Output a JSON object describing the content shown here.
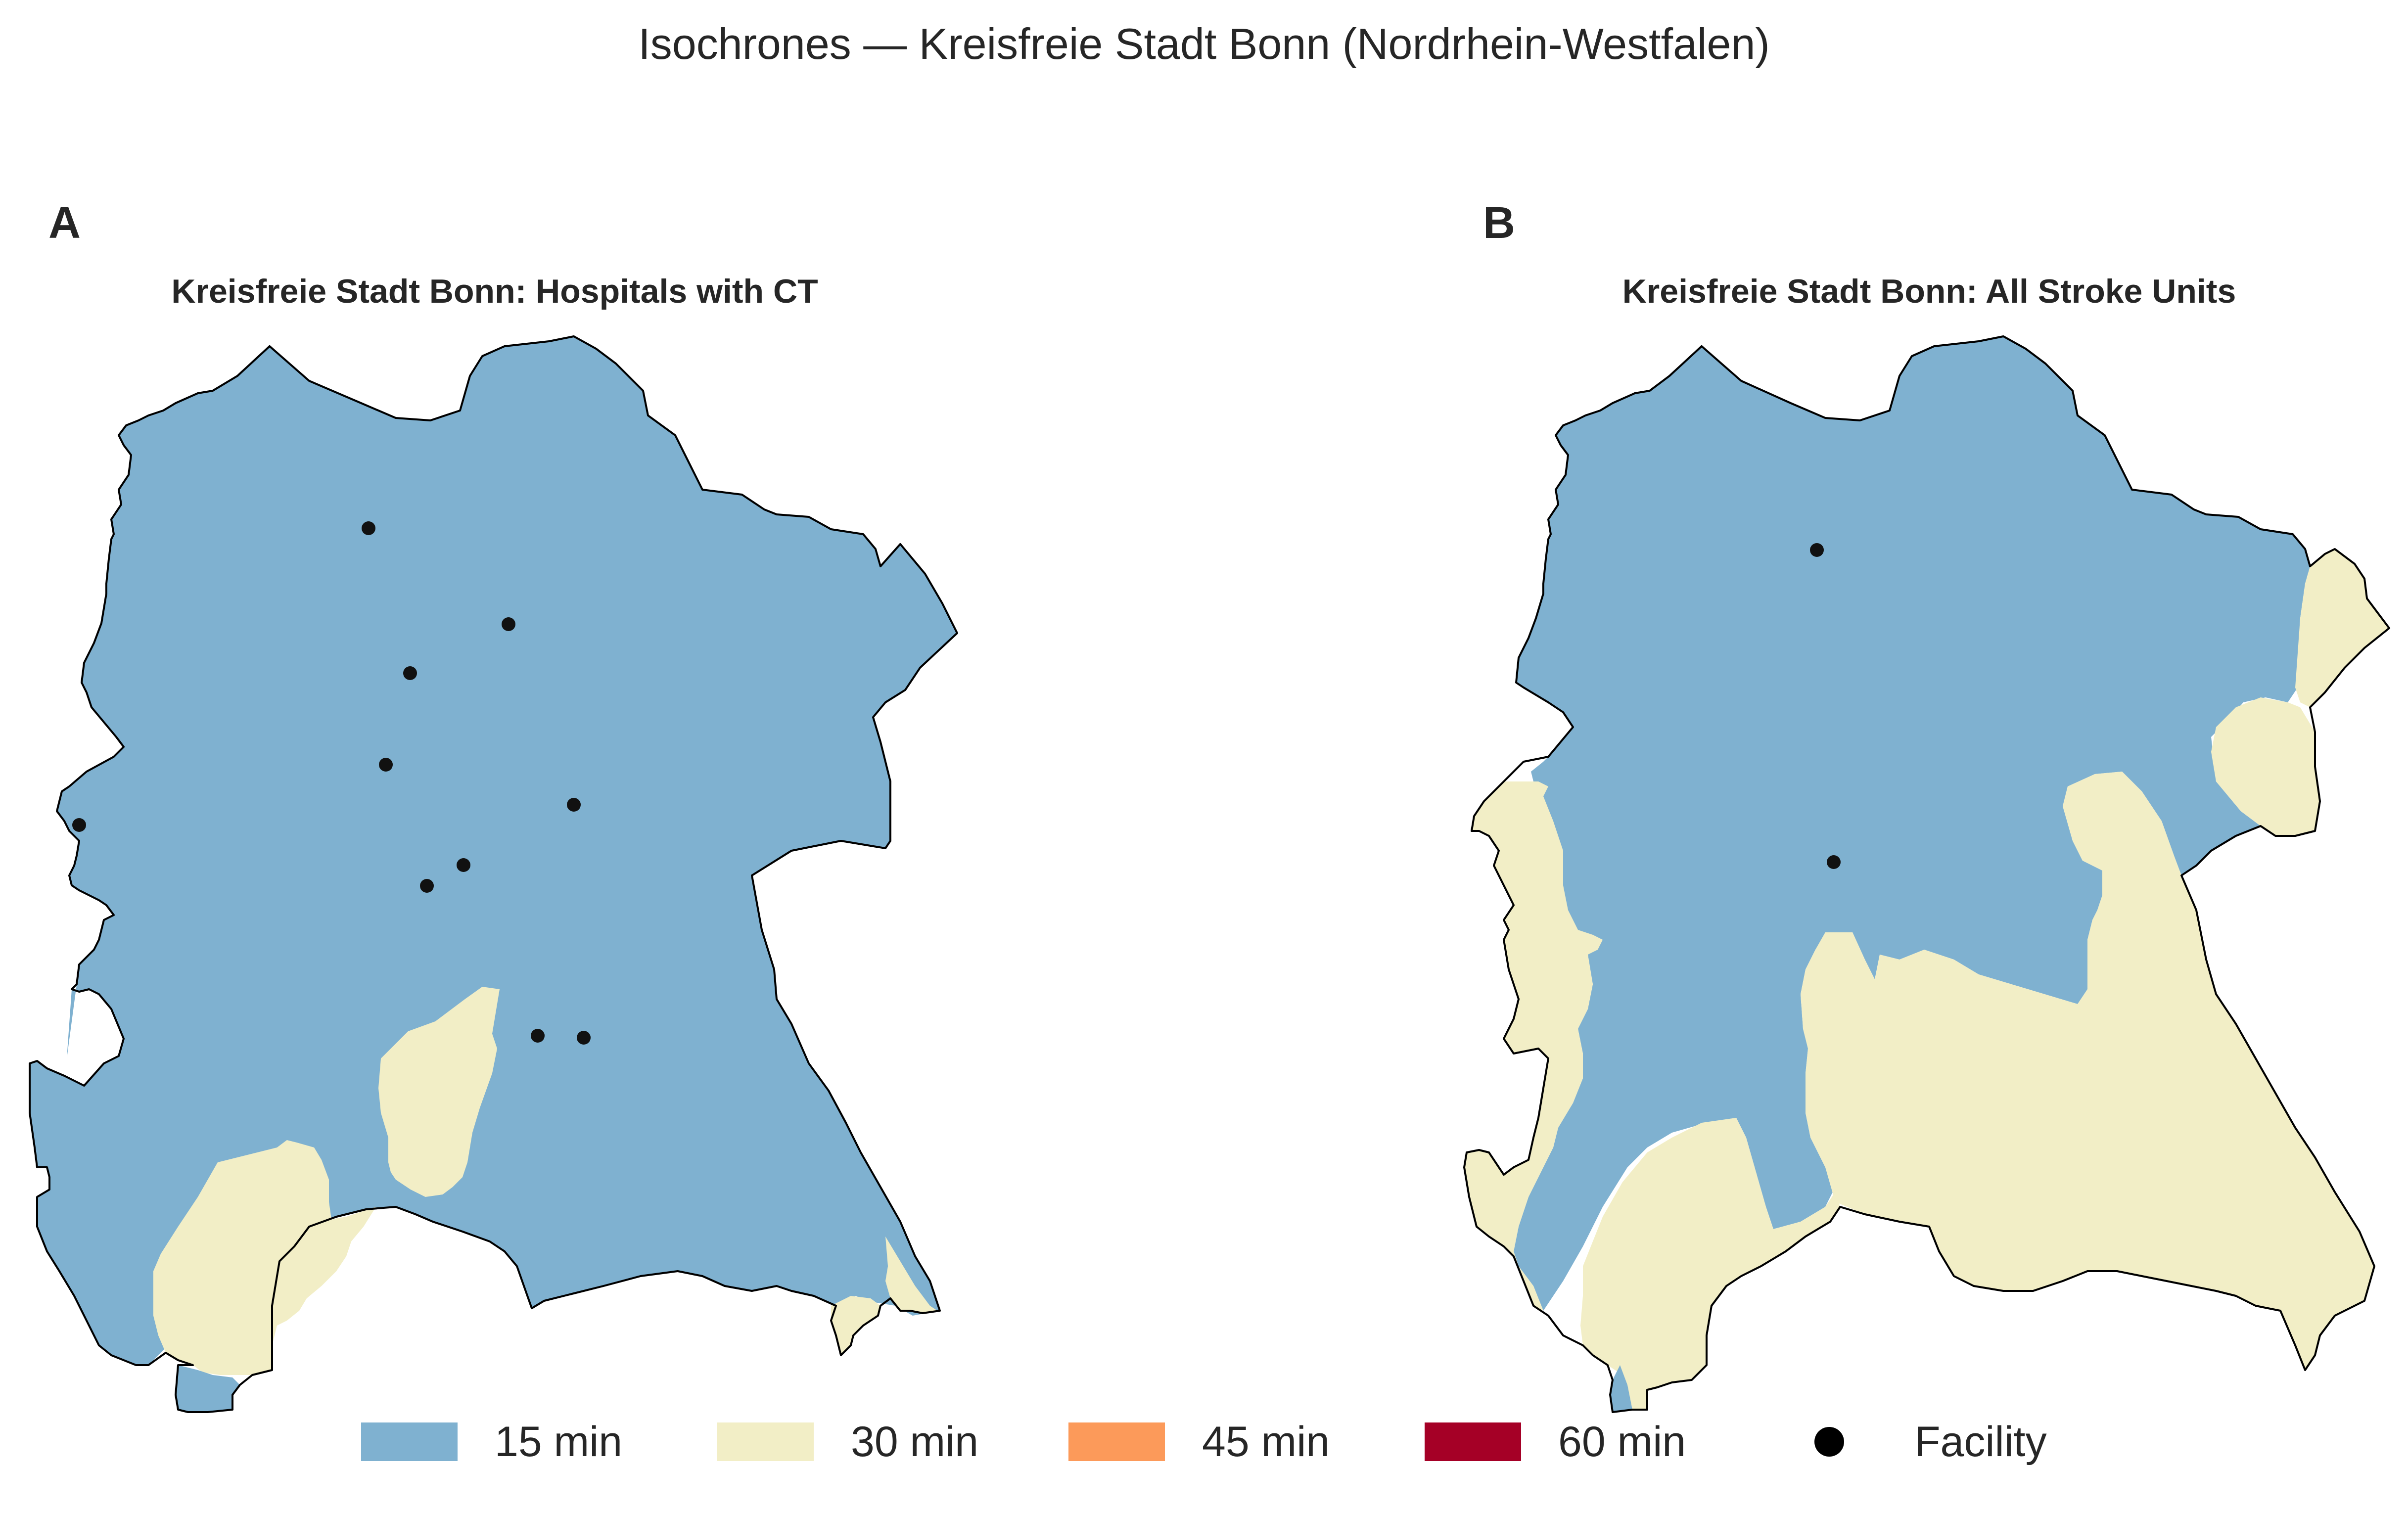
{
  "figure": {
    "title": "Isochrones — Kreisfreie Stadt Bonn (Nordrhein-Westfalen)"
  },
  "panels": [
    {
      "letter": "A",
      "title": "Kreisfreie Stadt Bonn: Hospitals with CT"
    },
    {
      "letter": "B",
      "title": "Kreisfreie Stadt Bonn: All Stroke Units"
    }
  ],
  "legend": {
    "items": [
      {
        "label": "15 min",
        "color": "#7FB1D0"
      },
      {
        "label": "30 min",
        "color": "#F2EEC6"
      },
      {
        "label": "45 min",
        "color": "#FC9A5A"
      },
      {
        "label": "60 min",
        "color": "#A50026"
      },
      {
        "label": "Facility",
        "marker": "black-dot"
      }
    ]
  },
  "colors": {
    "zone_15": "#7FB1D0",
    "zone_30": "#F2EEC6",
    "boundary": "#000000",
    "facility": "#111111"
  }
}
